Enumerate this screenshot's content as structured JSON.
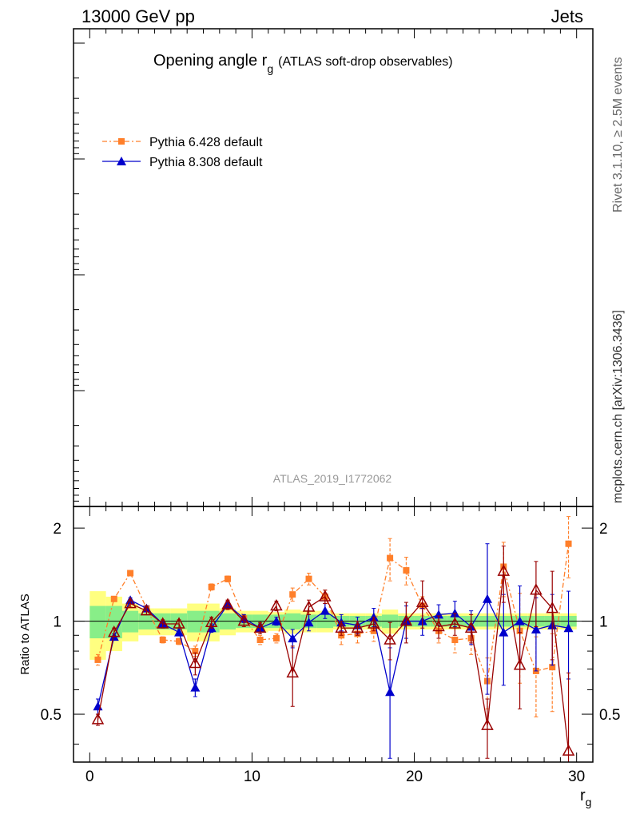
{
  "header": {
    "energy_label": "13000 GeV pp",
    "category_label": "Jets",
    "side_rivet": "Rivet 3.1.10, ≥ 2.5M events",
    "side_mcplots": "mcplots.cern.ch [arXiv:1306.3436]"
  },
  "chart_data": {
    "type": "line",
    "title_main": "Opening angle r",
    "title_sub": "g",
    "title_paren": "(ATLAS soft-drop observables)",
    "analysis_label": "ATLAS_2019_I1772062",
    "ratio_ylabel": "Ratio to ATLAS",
    "xlabel_main": "r",
    "xlabel_sub": "g",
    "xlim": [
      -1,
      31
    ],
    "ratio_ylim": [
      0.35,
      2.35
    ],
    "ratio_log_scale": true,
    "x_ticks": [
      0,
      10,
      20,
      30
    ],
    "ratio_yticks": [
      0.5,
      1,
      2
    ],
    "x": [
      0.5,
      1.5,
      2.5,
      3.5,
      4.5,
      5.5,
      6.5,
      7.5,
      8.5,
      9.5,
      10.5,
      11.5,
      12.5,
      13.5,
      14.5,
      15.5,
      16.5,
      17.5,
      18.5,
      19.5,
      20.5,
      21.5,
      22.5,
      23.5,
      24.5,
      25.5,
      26.5,
      27.5,
      28.5,
      29.5
    ],
    "band_inner": [
      0.12,
      0.12,
      0.08,
      0.06,
      0.06,
      0.06,
      0.08,
      0.08,
      0.06,
      0.05,
      0.05,
      0.05,
      0.06,
      0.05,
      0.05,
      0.04,
      0.04,
      0.04,
      0.05,
      0.04,
      0.04,
      0.04,
      0.04,
      0.04,
      0.04,
      0.04,
      0.04,
      0.04,
      0.04,
      0.04
    ],
    "band_outer": [
      0.25,
      0.2,
      0.14,
      0.1,
      0.1,
      0.1,
      0.14,
      0.14,
      0.1,
      0.08,
      0.08,
      0.07,
      0.09,
      0.08,
      0.08,
      0.06,
      0.06,
      0.06,
      0.09,
      0.06,
      0.06,
      0.06,
      0.06,
      0.06,
      0.06,
      0.06,
      0.06,
      0.06,
      0.06,
      0.06
    ],
    "series": [
      {
        "name": "Pythia 6.428 default",
        "color": "#ff7f2a",
        "marker": "square",
        "dash": "6,3,2,3",
        "values": [
          0.75,
          1.18,
          1.43,
          1.1,
          0.87,
          0.86,
          0.8,
          1.29,
          1.37,
          1.02,
          0.87,
          0.88,
          1.22,
          1.37,
          1.2,
          0.9,
          0.91,
          0.93,
          1.6,
          1.46,
          1.12,
          0.93,
          0.87,
          0.88,
          0.64,
          1.5,
          0.93,
          0.69,
          0.71,
          1.78
        ],
        "err": [
          0.03,
          0.02,
          0.02,
          0.02,
          0.02,
          0.02,
          0.03,
          0.03,
          0.03,
          0.03,
          0.03,
          0.03,
          0.06,
          0.06,
          0.06,
          0.06,
          0.06,
          0.07,
          0.25,
          0.15,
          0.08,
          0.08,
          0.08,
          0.1,
          0.12,
          0.3,
          0.3,
          0.2,
          0.2,
          0.4
        ]
      },
      {
        "name": "Pythia 8.308 default",
        "color": "#0000cc",
        "marker": "triangle",
        "dash": "",
        "values": [
          0.53,
          0.89,
          1.17,
          1.1,
          0.98,
          0.92,
          0.61,
          0.95,
          1.13,
          1.02,
          0.95,
          1.0,
          0.88,
          0.99,
          1.08,
          0.99,
          0.97,
          1.03,
          0.59,
          1.0,
          1.0,
          1.05,
          1.06,
          0.96,
          1.18,
          0.92,
          1.0,
          0.94,
          0.97,
          0.95
        ],
        "err": [
          0.03,
          0.02,
          0.02,
          0.02,
          0.02,
          0.02,
          0.04,
          0.03,
          0.03,
          0.03,
          0.03,
          0.03,
          0.06,
          0.06,
          0.06,
          0.06,
          0.06,
          0.07,
          0.23,
          0.12,
          0.1,
          0.08,
          0.1,
          0.12,
          0.6,
          0.3,
          0.3,
          0.25,
          0.25,
          0.3
        ]
      },
      {
        "name": "",
        "color": "#990000",
        "marker": "open-triangle",
        "dash": "",
        "values": [
          0.48,
          0.92,
          1.14,
          1.08,
          0.98,
          0.98,
          0.73,
          0.99,
          1.13,
          1.0,
          0.95,
          1.12,
          0.68,
          1.11,
          1.2,
          0.95,
          0.95,
          0.98,
          0.87,
          1.0,
          1.15,
          0.96,
          0.98,
          0.95,
          0.46,
          1.45,
          0.72,
          1.26,
          1.1,
          0.38
        ],
        "err": [
          0.02,
          0.03,
          0.03,
          0.03,
          0.03,
          0.03,
          0.06,
          0.04,
          0.04,
          0.04,
          0.04,
          0.04,
          0.15,
          0.06,
          0.06,
          0.05,
          0.05,
          0.05,
          0.12,
          0.15,
          0.2,
          0.08,
          0.08,
          0.1,
          0.1,
          0.3,
          0.2,
          0.3,
          0.35,
          0.3
        ]
      }
    ]
  }
}
